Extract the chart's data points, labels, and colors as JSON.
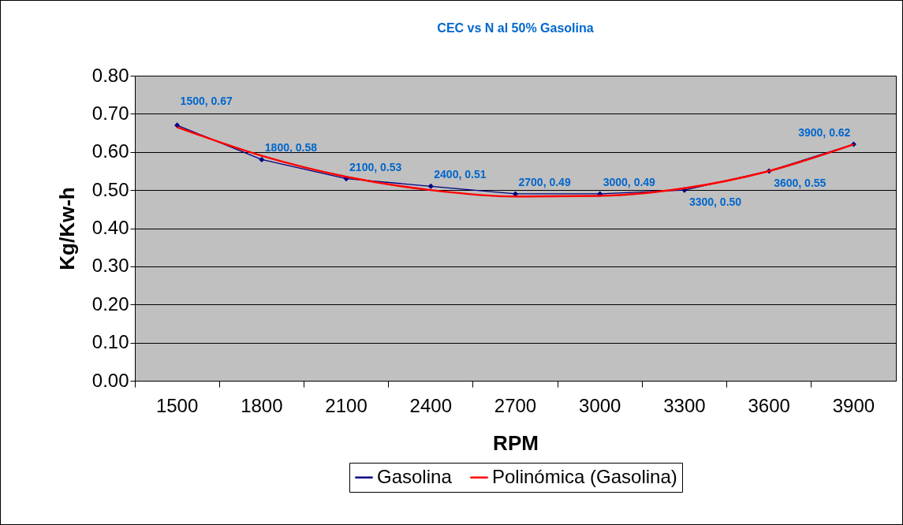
{
  "chart_data": {
    "type": "line",
    "title": "CEC vs N al 50% Gasolina",
    "xlabel": "RPM",
    "ylabel": "Kg/Kw-h",
    "categories": [
      "1500",
      "1800",
      "2100",
      "2400",
      "2700",
      "3000",
      "3300",
      "3600",
      "3900"
    ],
    "series": [
      {
        "name": "Gasolina",
        "color": "#000080",
        "marker": "diamond",
        "values": [
          0.67,
          0.58,
          0.53,
          0.51,
          0.49,
          0.49,
          0.5,
          0.55,
          0.62
        ],
        "value_labels": [
          "1500, 0.67",
          "1800, 0.58",
          "2100, 0.53",
          "2400, 0.51",
          "2700, 0.49",
          "3000, 0.49",
          "3300, 0.50",
          "3600, 0.55",
          "3900, 0.62"
        ]
      },
      {
        "name": "Polinómica (Gasolina)",
        "color": "#ff0000",
        "type": "line",
        "marker": "none",
        "values": [
          0.665,
          0.59,
          0.535,
          0.5,
          0.483,
          0.485,
          0.505,
          0.55,
          0.62
        ]
      }
    ],
    "ylim": [
      0,
      0.8
    ],
    "yticks": [
      {
        "value": 0,
        "label": "0.00"
      },
      {
        "value": 0.1,
        "label": "0.10"
      },
      {
        "value": 0.2,
        "label": "0.20"
      },
      {
        "value": 0.3,
        "label": "0.30"
      },
      {
        "value": 0.4,
        "label": "0.40"
      },
      {
        "value": 0.5,
        "label": "0.50"
      },
      {
        "value": 0.6,
        "label": "0.60"
      },
      {
        "value": 0.7,
        "label": "0.70"
      },
      {
        "value": 0.8,
        "label": "0.80"
      }
    ],
    "grid": "y",
    "legend": "bottom"
  }
}
